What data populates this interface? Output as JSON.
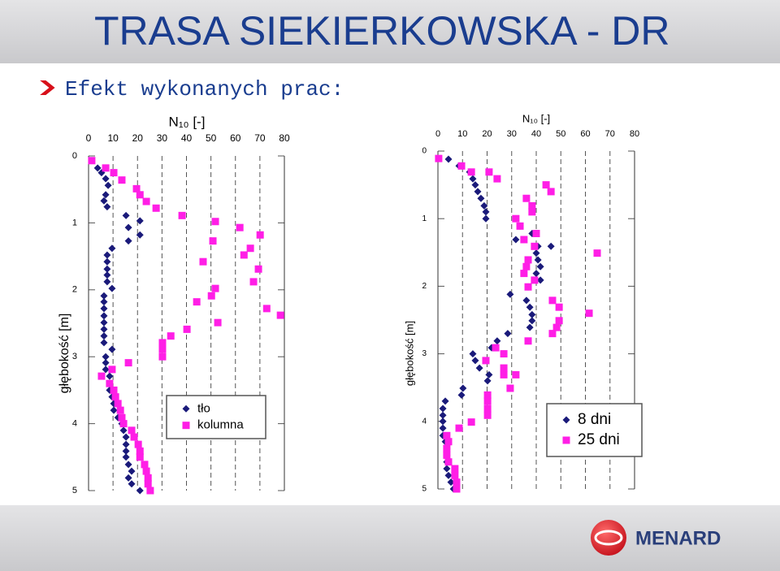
{
  "header": {
    "title": "TRASA SIEKIERKOWSKA - DR",
    "subtitle": "Efekt wykonanych prac:"
  },
  "footer": {
    "logo": "MENARD"
  },
  "chart_data": [
    {
      "type": "scatter",
      "xlabel": "N₁₀ [-]",
      "ylabel": "głębokość [m]",
      "xlim": [
        0,
        80
      ],
      "xticks": [
        0,
        10,
        20,
        30,
        40,
        50,
        60,
        70,
        80
      ],
      "ylim": [
        0,
        5
      ],
      "yticks": [
        0,
        1,
        2,
        3,
        4,
        5
      ],
      "y_inverted": true,
      "grid": true,
      "series": [
        {
          "name": "tło",
          "color": "#1a1a7a",
          "marker": "diamond",
          "x": [
            3.7,
            5.3,
            7,
            8,
            7,
            6.3,
            7.6,
            15.3,
            21,
            16.3,
            21,
            16.3,
            9.6,
            7.6,
            7.6,
            7.6,
            7.6,
            7.6,
            9.6,
            6.3,
            6.3,
            6.3,
            6.3,
            6.3,
            6.3,
            6.3,
            6.3,
            9.6,
            7,
            7,
            7,
            8.6,
            8.6,
            8.6,
            9.6,
            10.3,
            10.3,
            12,
            13.6,
            14.3,
            15.3,
            15.3,
            15.3,
            15.3,
            16.3,
            17.6,
            16.3,
            17.6,
            21
          ],
          "y": [
            0.18,
            0.25,
            0.34,
            0.44,
            0.58,
            0.67,
            0.76,
            0.89,
            0.97,
            1.07,
            1.18,
            1.27,
            1.38,
            1.48,
            1.58,
            1.69,
            1.78,
            1.88,
            1.98,
            2.09,
            2.18,
            2.28,
            2.39,
            2.49,
            2.59,
            2.69,
            2.79,
            2.89,
            3.0,
            3.09,
            3.19,
            3.29,
            3.4,
            3.5,
            3.6,
            3.7,
            3.8,
            3.91,
            4.0,
            4.1,
            4.2,
            4.31,
            4.41,
            4.5,
            4.61,
            4.71,
            4.81,
            4.9,
            5.0
          ]
        },
        {
          "name": "kolumna",
          "color": "#ff1ee6",
          "marker": "square",
          "x": [
            1.3,
            7,
            10.3,
            13.6,
            19.6,
            21,
            23.6,
            27.6,
            38.2,
            51.8,
            61.8,
            70.1,
            50.8,
            66.1,
            63.5,
            46.8,
            69.4,
            67.4,
            51.8,
            50.2,
            44.2,
            72.8,
            78.4,
            52.8,
            40.2,
            33.6,
            30.2,
            30.2,
            30.2,
            16.3,
            9.6,
            5.3,
            8.6,
            10.3,
            11,
            12,
            13,
            13.6,
            14.3,
            17.6,
            18.6,
            20.3,
            21,
            21,
            22.9,
            23.6,
            24.3,
            24.3,
            25.2
          ],
          "y": [
            0.07,
            0.18,
            0.25,
            0.36,
            0.49,
            0.58,
            0.68,
            0.78,
            0.89,
            0.98,
            1.07,
            1.18,
            1.27,
            1.38,
            1.48,
            1.58,
            1.69,
            1.88,
            1.98,
            2.09,
            2.18,
            2.28,
            2.38,
            2.49,
            2.59,
            2.69,
            2.79,
            2.89,
            3.0,
            3.09,
            3.19,
            3.29,
            3.4,
            3.5,
            3.6,
            3.7,
            3.8,
            3.91,
            4.0,
            4.1,
            4.2,
            4.31,
            4.41,
            4.5,
            4.61,
            4.71,
            4.81,
            4.9,
            5.0
          ]
        }
      ]
    },
    {
      "type": "scatter",
      "xlabel": "N₁₀ [-]",
      "ylabel": "głębokość [m]",
      "xlim": [
        0,
        80
      ],
      "xticks": [
        0,
        10,
        20,
        30,
        40,
        50,
        60,
        70,
        80
      ],
      "ylim": [
        0,
        5
      ],
      "yticks": [
        0,
        1,
        2,
        3,
        4,
        5
      ],
      "y_inverted": true,
      "grid": true,
      "series": [
        {
          "name": "8 dni",
          "color": "#1a1a7a",
          "marker": "diamond",
          "x": [
            4.3,
            8.6,
            12.9,
            14.2,
            15.2,
            16.2,
            17.5,
            18.8,
            19.5,
            19.5,
            33.4,
            38.3,
            31.7,
            40.7,
            46,
            40,
            40.7,
            41.7,
            40,
            41.7,
            36.7,
            29.4,
            36,
            37.4,
            38.3,
            38.3,
            37.4,
            28.4,
            24.1,
            21.8,
            14.2,
            15.2,
            16.9,
            20.8,
            20.2,
            10.2,
            9.6,
            3,
            2,
            2,
            2,
            2,
            2,
            3,
            3.6,
            3.6,
            3.6,
            3.6,
            4.3,
            5.3,
            6.3
          ],
          "y": [
            0.12,
            0.22,
            0.31,
            0.41,
            0.5,
            0.6,
            0.7,
            0.81,
            0.9,
            1.0,
            1.11,
            1.22,
            1.31,
            1.41,
            1.41,
            1.51,
            1.61,
            1.71,
            1.81,
            1.91,
            2.01,
            2.12,
            2.21,
            2.31,
            2.42,
            2.51,
            2.61,
            2.7,
            2.81,
            2.91,
            3.0,
            3.1,
            3.21,
            3.31,
            3.4,
            3.51,
            3.61,
            3.7,
            3.81,
            3.91,
            4.0,
            4.1,
            4.21,
            4.3,
            4.4,
            4.5,
            4.6,
            4.7,
            4.8,
            4.9,
            5.0
          ]
        },
        {
          "name": "25 dni",
          "color": "#ff1ee6",
          "marker": "square",
          "x": [
            0.3,
            9.6,
            13.6,
            20.8,
            24.1,
            44,
            46,
            36,
            38.3,
            38.3,
            31.7,
            33.4,
            40,
            35,
            39.3,
            64.8,
            36.7,
            36,
            35,
            39.3,
            36.7,
            46.6,
            49.3,
            61.5,
            49.3,
            48.3,
            46.6,
            36.7,
            23.5,
            26.8,
            19.5,
            26.8,
            31.7,
            26.8,
            29.4,
            20.2,
            20.2,
            20.2,
            20.2,
            13.6,
            8.6,
            3.6,
            4.3,
            3.6,
            3.6,
            4.3,
            6.9,
            6.9,
            7.6,
            7.6
          ],
          "y": [
            0.11,
            0.22,
            0.31,
            0.31,
            0.41,
            0.5,
            0.6,
            0.7,
            0.81,
            0.9,
            1.0,
            1.11,
            1.22,
            1.31,
            1.41,
            1.51,
            1.61,
            1.71,
            1.81,
            1.91,
            2.01,
            2.21,
            2.31,
            2.4,
            2.51,
            2.61,
            2.7,
            2.81,
            2.91,
            3.0,
            3.1,
            3.21,
            3.31,
            3.31,
            3.51,
            3.61,
            3.7,
            3.81,
            3.91,
            4.01,
            4.1,
            4.21,
            4.3,
            4.4,
            4.5,
            4.6,
            4.7,
            4.8,
            4.9,
            5.0
          ]
        }
      ]
    }
  ]
}
